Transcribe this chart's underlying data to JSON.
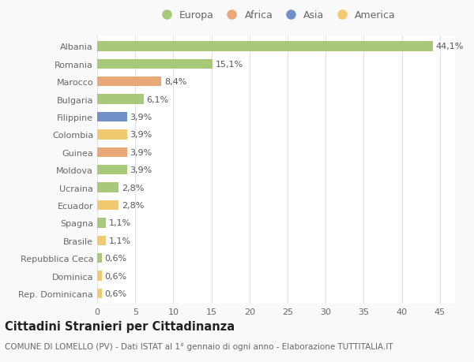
{
  "categories": [
    "Rep. Dominicana",
    "Dominica",
    "Repubblica Ceca",
    "Brasile",
    "Spagna",
    "Ecuador",
    "Ucraina",
    "Moldova",
    "Guinea",
    "Colombia",
    "Filippine",
    "Bulgaria",
    "Marocco",
    "Romania",
    "Albania"
  ],
  "values": [
    0.6,
    0.6,
    0.6,
    1.1,
    1.1,
    2.8,
    2.8,
    3.9,
    3.9,
    3.9,
    3.9,
    6.1,
    8.4,
    15.1,
    44.1
  ],
  "labels": [
    "0,6%",
    "0,6%",
    "0,6%",
    "1,1%",
    "1,1%",
    "2,8%",
    "2,8%",
    "3,9%",
    "3,9%",
    "3,9%",
    "3,9%",
    "6,1%",
    "8,4%",
    "15,1%",
    "44,1%"
  ],
  "colors": [
    "#f2c96e",
    "#f2c96e",
    "#a8c87a",
    "#f2c96e",
    "#a8c87a",
    "#f2c96e",
    "#a8c87a",
    "#a8c87a",
    "#e8a878",
    "#f2c96e",
    "#7090c8",
    "#a8c87a",
    "#e8a878",
    "#a8c87a",
    "#a8c87a"
  ],
  "legend_labels": [
    "Europa",
    "Africa",
    "Asia",
    "America"
  ],
  "legend_colors": [
    "#a8c87a",
    "#e8a878",
    "#7090c8",
    "#f2c96e"
  ],
  "title": "Cittadini Stranieri per Cittadinanza",
  "subtitle": "COMUNE DI LOMELLO (PV) - Dati ISTAT al 1° gennaio di ogni anno - Elaborazione TUTTITALIA.IT",
  "xlim": [
    0,
    47
  ],
  "xticks": [
    0,
    5,
    10,
    15,
    20,
    25,
    30,
    35,
    40,
    45
  ],
  "bg_color": "#f9f9f9",
  "bar_bg_color": "#ffffff",
  "grid_color": "#e0e0e0",
  "text_color": "#666666",
  "label_color": "#555555",
  "label_fontsize": 8.0,
  "tick_fontsize": 8.0,
  "title_fontsize": 10.5,
  "subtitle_fontsize": 7.5
}
